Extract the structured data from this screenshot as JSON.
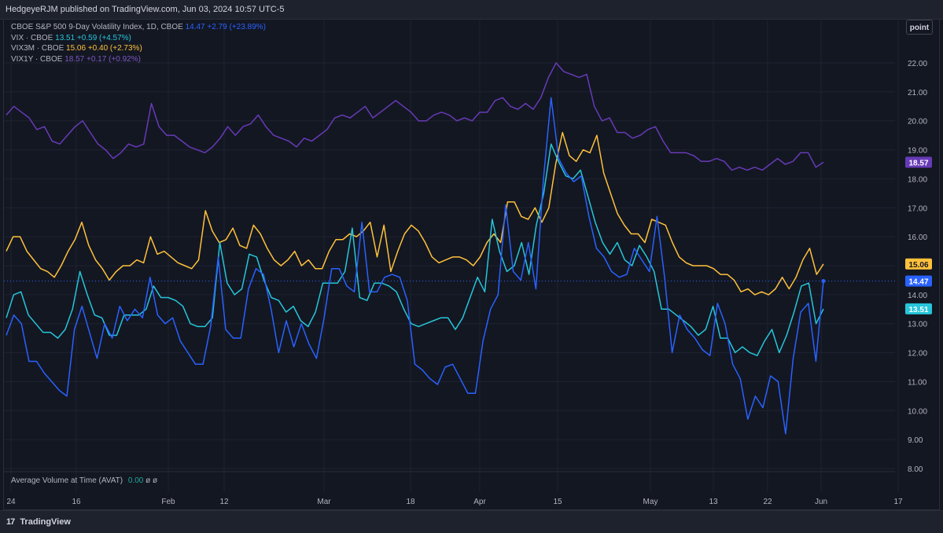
{
  "header": {
    "published": "HedgeyeRJM published on TradingView.com, Jun 03, 2024 10:57 UTC-5"
  },
  "legend": [
    {
      "name": "CBOE S&P 500 9-Day Volatility Index, 1D, CBOE",
      "value": "14.47",
      "change": "+2.79 (+23.89%)",
      "color": "#2962ff"
    },
    {
      "name": "VIX · CBOE",
      "value": "13.51",
      "change": "+0.59 (+4.57%)",
      "color": "#26c6da"
    },
    {
      "name": "VIX3M · CBOE",
      "value": "15.06",
      "change": "+0.40 (+2.73%)",
      "color": "#ffc13b"
    },
    {
      "name": "VIX1Y · CBOE",
      "value": "18.57",
      "change": "+0.17 (+0.92%)",
      "color": "#673ab7"
    }
  ],
  "scale_button": "point",
  "indicator": {
    "name": "Average Volume at Time (AVAT)",
    "value": "0.00",
    "extra": "ø ø"
  },
  "brand": {
    "logo": "17",
    "name": "TradingView"
  },
  "colors": {
    "background": "#131722",
    "grid": "#1f2330",
    "vix9d": "#2962ff",
    "vix": "#26c6da",
    "vix3m": "#ffc13b",
    "vix1y": "#673ab7"
  },
  "chart_data": {
    "type": "line",
    "grid": true,
    "ylim": [
      8.0,
      22.5
    ],
    "y_ticks": [
      "22.00",
      "21.00",
      "20.00",
      "19.00",
      "18.00",
      "17.00",
      "16.00",
      "15.00",
      "14.00",
      "13.00",
      "12.00",
      "11.00",
      "10.00",
      "9.00",
      "8.00"
    ],
    "x_ticks": [
      "24",
      "16",
      "Feb",
      "12",
      "Mar",
      "18",
      "Apr",
      "15",
      "May",
      "13",
      "22",
      "Jun",
      "17"
    ],
    "last_price_line": 14.47,
    "series": [
      {
        "key": "vix1y",
        "name": "VIX1Y · CBOE",
        "last_label": "18.57",
        "label_text_color": "#ffffff",
        "values": [
          20.2,
          20.5,
          20.3,
          20.1,
          19.7,
          19.8,
          19.3,
          19.2,
          19.5,
          19.8,
          20.0,
          19.6,
          19.2,
          19.0,
          18.7,
          18.9,
          19.2,
          19.1,
          19.2,
          20.6,
          19.8,
          19.5,
          19.5,
          19.3,
          19.1,
          19.0,
          18.9,
          19.1,
          19.4,
          19.8,
          19.5,
          19.8,
          19.9,
          20.2,
          19.8,
          19.5,
          19.4,
          19.3,
          19.1,
          19.4,
          19.3,
          19.5,
          19.7,
          20.1,
          20.2,
          20.1,
          20.3,
          20.5,
          20.1,
          20.3,
          20.5,
          20.7,
          20.5,
          20.3,
          20.0,
          20.0,
          20.2,
          20.3,
          20.2,
          20.0,
          20.1,
          20.0,
          20.3,
          20.3,
          20.7,
          20.8,
          20.5,
          20.4,
          20.6,
          20.4,
          20.8,
          21.5,
          22.0,
          21.7,
          21.6,
          21.5,
          21.6,
          20.5,
          20.0,
          20.1,
          19.6,
          19.6,
          19.4,
          19.5,
          19.7,
          19.8,
          19.3,
          18.9,
          18.9,
          18.9,
          18.8,
          18.6,
          18.6,
          18.7,
          18.6,
          18.3,
          18.4,
          18.3,
          18.4,
          18.3,
          18.5,
          18.7,
          18.5,
          18.6,
          18.9,
          18.9,
          18.4,
          18.57
        ]
      },
      {
        "key": "vix3m",
        "name": "VIX3M · CBOE",
        "last_label": "15.06",
        "label_text_color": "#131722",
        "values": [
          15.5,
          16.0,
          16.0,
          15.5,
          15.2,
          14.9,
          14.8,
          14.6,
          15.0,
          15.5,
          15.9,
          16.5,
          15.7,
          15.2,
          14.9,
          14.5,
          14.8,
          15.0,
          15.0,
          15.2,
          15.1,
          16.0,
          15.4,
          15.5,
          15.3,
          15.1,
          15.0,
          14.9,
          15.2,
          16.9,
          16.2,
          15.8,
          15.9,
          16.3,
          15.7,
          15.6,
          16.4,
          16.1,
          15.6,
          15.2,
          15.0,
          15.2,
          15.5,
          15.0,
          15.2,
          14.9,
          14.9,
          15.5,
          15.9,
          15.9,
          16.1,
          16.0,
          16.2,
          16.5,
          15.3,
          16.4,
          14.8,
          15.5,
          16.1,
          16.4,
          16.2,
          15.8,
          15.3,
          15.1,
          15.2,
          15.3,
          15.3,
          15.2,
          15.0,
          15.3,
          15.8,
          16.1,
          15.8,
          17.2,
          17.2,
          16.7,
          16.6,
          17.0,
          16.5,
          17.0,
          18.5,
          19.6,
          18.8,
          18.6,
          19.0,
          18.9,
          19.5,
          18.2,
          17.5,
          16.8,
          16.4,
          16.1,
          16.1,
          15.8,
          16.6,
          16.5,
          16.4,
          15.8,
          15.3,
          15.1,
          15.0,
          15.0,
          15.0,
          14.9,
          14.7,
          14.7,
          14.5,
          14.1,
          14.2,
          14.0,
          14.1,
          14.0,
          14.2,
          14.6,
          14.2,
          14.6,
          15.2,
          15.6,
          14.7,
          15.06
        ]
      },
      {
        "key": "vix",
        "name": "VIX · CBOE",
        "last_label": "13.51",
        "label_text_color": "#ffffff",
        "values": [
          13.2,
          14.0,
          14.1,
          13.3,
          13.0,
          12.7,
          12.7,
          12.5,
          12.8,
          13.5,
          14.8,
          14.0,
          13.3,
          13.2,
          12.6,
          12.6,
          13.3,
          13.3,
          13.3,
          13.5,
          14.3,
          13.9,
          13.9,
          13.8,
          13.6,
          13.0,
          12.9,
          12.9,
          13.2,
          15.8,
          14.4,
          14.0,
          14.2,
          15.4,
          15.3,
          14.5,
          13.9,
          13.8,
          13.4,
          13.6,
          13.1,
          12.9,
          13.4,
          14.4,
          14.4,
          14.4,
          14.8,
          16.3,
          13.9,
          13.8,
          14.4,
          14.4,
          14.3,
          14.1,
          13.5,
          13.0,
          12.9,
          13.0,
          13.1,
          13.2,
          13.2,
          12.8,
          13.2,
          13.9,
          14.6,
          14.1,
          16.6,
          15.5,
          14.8,
          15.0,
          15.8,
          14.7,
          16.4,
          17.5,
          19.2,
          18.6,
          18.1,
          18.0,
          18.3,
          17.4,
          16.5,
          15.8,
          15.4,
          15.8,
          15.2,
          15.0,
          15.7,
          15.3,
          14.8,
          13.5,
          13.5,
          13.3,
          13.1,
          12.9,
          12.6,
          12.8,
          13.6,
          12.5,
          12.5,
          12.0,
          12.2,
          12.0,
          11.9,
          12.4,
          12.8,
          12.0,
          12.6,
          13.4,
          14.3,
          14.4,
          13.0,
          13.51
        ]
      },
      {
        "key": "vix9d",
        "name": "CBOE S&P 500 9-Day Volatility Index, 1D, CBOE",
        "last_label": "14.47",
        "label_text_color": "#ffffff",
        "values": [
          12.6,
          13.3,
          13.0,
          11.7,
          11.7,
          11.3,
          11.0,
          10.7,
          10.5,
          12.8,
          13.6,
          12.7,
          11.8,
          13.0,
          12.5,
          13.6,
          13.1,
          13.5,
          13.2,
          14.6,
          13.3,
          13.0,
          13.2,
          12.4,
          12.0,
          11.6,
          11.6,
          12.9,
          15.3,
          12.8,
          12.5,
          12.5,
          14.2,
          14.9,
          14.7,
          13.5,
          12.0,
          13.1,
          12.2,
          13.0,
          12.3,
          11.8,
          13.2,
          14.9,
          14.9,
          14.3,
          14.1,
          16.5,
          14.1,
          14.1,
          14.6,
          14.7,
          14.6,
          13.8,
          11.6,
          11.4,
          11.1,
          10.9,
          11.5,
          11.6,
          11.1,
          10.6,
          10.6,
          12.4,
          13.5,
          14.0,
          17.1,
          14.8,
          14.5,
          15.8,
          14.2,
          18.0,
          20.8,
          18.7,
          18.2,
          17.9,
          18.1,
          16.7,
          15.6,
          15.3,
          14.8,
          14.6,
          14.7,
          15.6,
          15.2,
          14.8,
          16.7,
          14.6,
          12.0,
          13.3,
          12.8,
          12.5,
          12.1,
          11.9,
          13.7,
          13.0,
          11.6,
          11.1,
          9.7,
          10.5,
          10.1,
          11.2,
          11.0,
          9.2,
          11.8,
          13.4,
          13.7,
          11.7,
          14.47
        ]
      }
    ]
  }
}
